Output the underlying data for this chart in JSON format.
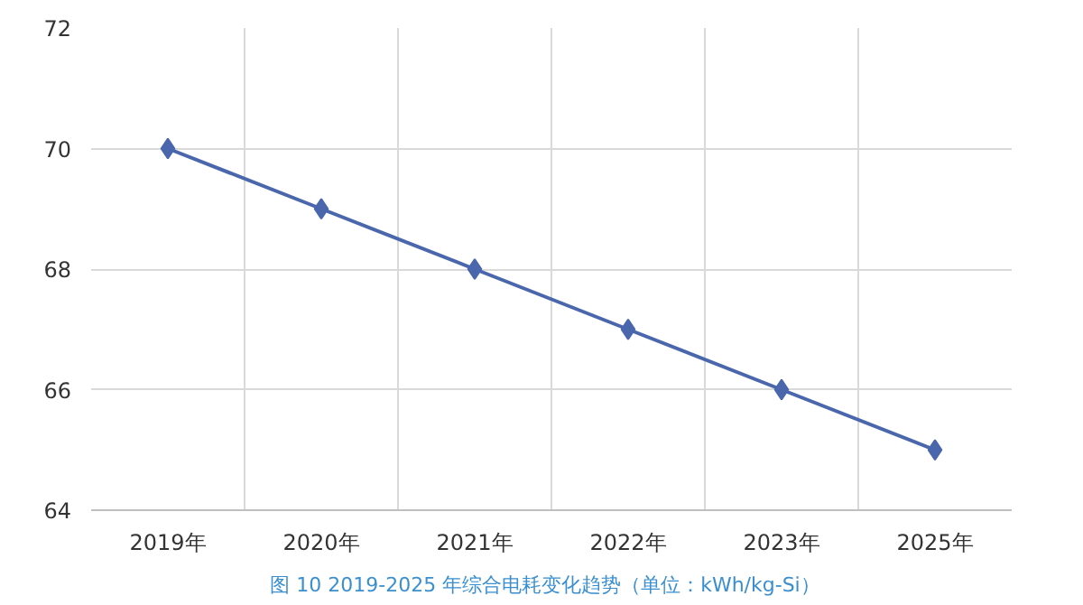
{
  "chart_data": {
    "type": "line",
    "title": "图 10   2019-2025 年综合电耗变化趋势（单位：kWh/kg-Si）",
    "categories": [
      "2019年",
      "2020年",
      "2021年",
      "2022年",
      "2023年",
      "2025年"
    ],
    "series": [
      {
        "color": "#4a67ad",
        "values": [
          70,
          69,
          68,
          67,
          66,
          65
        ]
      }
    ],
    "ylim": [
      64,
      72
    ],
    "yticks": [
      64,
      66,
      68,
      70,
      72
    ],
    "grid": true,
    "marker": "diamond",
    "line_style": "solid"
  }
}
